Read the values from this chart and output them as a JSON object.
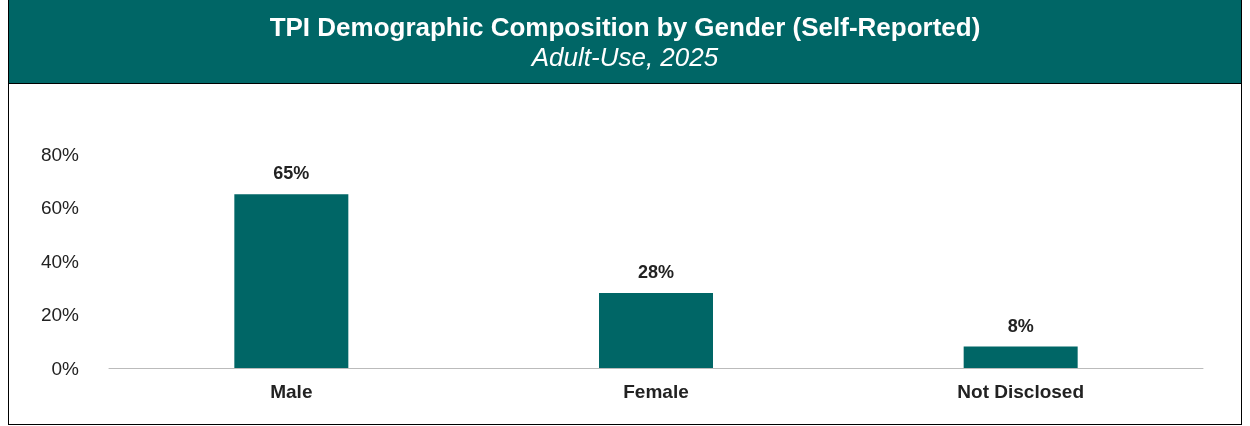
{
  "chart_data": {
    "type": "bar",
    "title": "TPI Demographic Composition by Gender (Self-Reported)",
    "subtitle": "Adult-Use, 2025",
    "categories": [
      "Male",
      "Female",
      "Not Disclosed"
    ],
    "values": [
      65,
      28,
      8
    ],
    "value_labels": [
      "65%",
      "28%",
      "8%"
    ],
    "color": "#006666",
    "ylim": [
      0,
      80
    ],
    "yticks": [
      {
        "value": 0,
        "label": "0%"
      },
      {
        "value": 20,
        "label": "20%"
      },
      {
        "value": 40,
        "label": "40%"
      },
      {
        "value": 60,
        "label": "60%"
      },
      {
        "value": 80,
        "label": "80%"
      }
    ],
    "grid": false
  }
}
